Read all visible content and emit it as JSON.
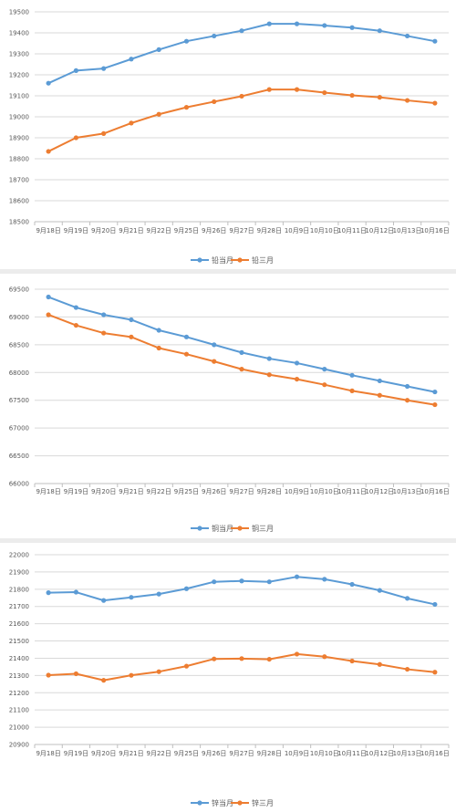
{
  "colors": {
    "series1": "#5b9bd5",
    "series2": "#ed7d31",
    "grid": "#d9d9d9",
    "axis": "#bfbfbf",
    "text": "#595959"
  },
  "chart_data": [
    {
      "type": "line",
      "categories": [
        "9月18日",
        "9月19日",
        "9月20日",
        "9月21日",
        "9月22日",
        "9月25日",
        "9月26日",
        "9月27日",
        "9月28日",
        "10月9日",
        "10月10日",
        "10月11日",
        "10月12日",
        "10月13日",
        "10月16日"
      ],
      "ylim": [
        18500,
        19500
      ],
      "ystep": 100,
      "legend_position": "bottom",
      "grid": true,
      "series": [
        {
          "name": "铅当月",
          "values": [
            19160,
            19220,
            19230,
            19275,
            19320,
            19360,
            19385,
            19410,
            19443,
            19443,
            19435,
            19425,
            19410,
            19385,
            19360
          ]
        },
        {
          "name": "铅三月",
          "values": [
            18835,
            18900,
            18920,
            18970,
            19012,
            19045,
            19072,
            19098,
            19130,
            19130,
            19115,
            19102,
            19093,
            19078,
            19065
          ]
        }
      ]
    },
    {
      "type": "line",
      "categories": [
        "9月18日",
        "9月19日",
        "9月20日",
        "9月21日",
        "9月22日",
        "9月25日",
        "9月26日",
        "9月27日",
        "9月28日",
        "10月9日",
        "10月10日",
        "10月11日",
        "10月12日",
        "10月13日",
        "10月16日"
      ],
      "ylim": [
        66000,
        69500
      ],
      "ystep": 500,
      "legend_position": "bottom",
      "grid": true,
      "series": [
        {
          "name": "铜当月",
          "values": [
            69360,
            69170,
            69040,
            68950,
            68760,
            68640,
            68500,
            68360,
            68250,
            68170,
            68060,
            67950,
            67850,
            67750,
            67650
          ]
        },
        {
          "name": "铜三月",
          "values": [
            69040,
            68850,
            68710,
            68640,
            68440,
            68330,
            68200,
            68060,
            67960,
            67880,
            67780,
            67670,
            67590,
            67500,
            67420
          ]
        }
      ]
    },
    {
      "type": "line",
      "categories": [
        "9月18日",
        "9月19日",
        "9月20日",
        "9月21日",
        "9月22日",
        "9月25日",
        "9月26日",
        "9月27日",
        "9月28日",
        "10月9日",
        "10月10日",
        "10月11日",
        "10月12日",
        "10月13日",
        "10月16日"
      ],
      "ylim": [
        20900,
        22000
      ],
      "ystep": 100,
      "legend_position": "bottom",
      "grid": true,
      "series": [
        {
          "name": "锌当月",
          "values": [
            21780,
            21783,
            21735,
            21753,
            21772,
            21803,
            21843,
            21848,
            21843,
            21872,
            21858,
            21828,
            21793,
            21747,
            21712
          ]
        },
        {
          "name": "锌三月",
          "values": [
            21302,
            21310,
            21272,
            21301,
            21322,
            21354,
            21396,
            21398,
            21394,
            21424,
            21409,
            21384,
            21364,
            21336,
            21319
          ]
        }
      ]
    }
  ]
}
